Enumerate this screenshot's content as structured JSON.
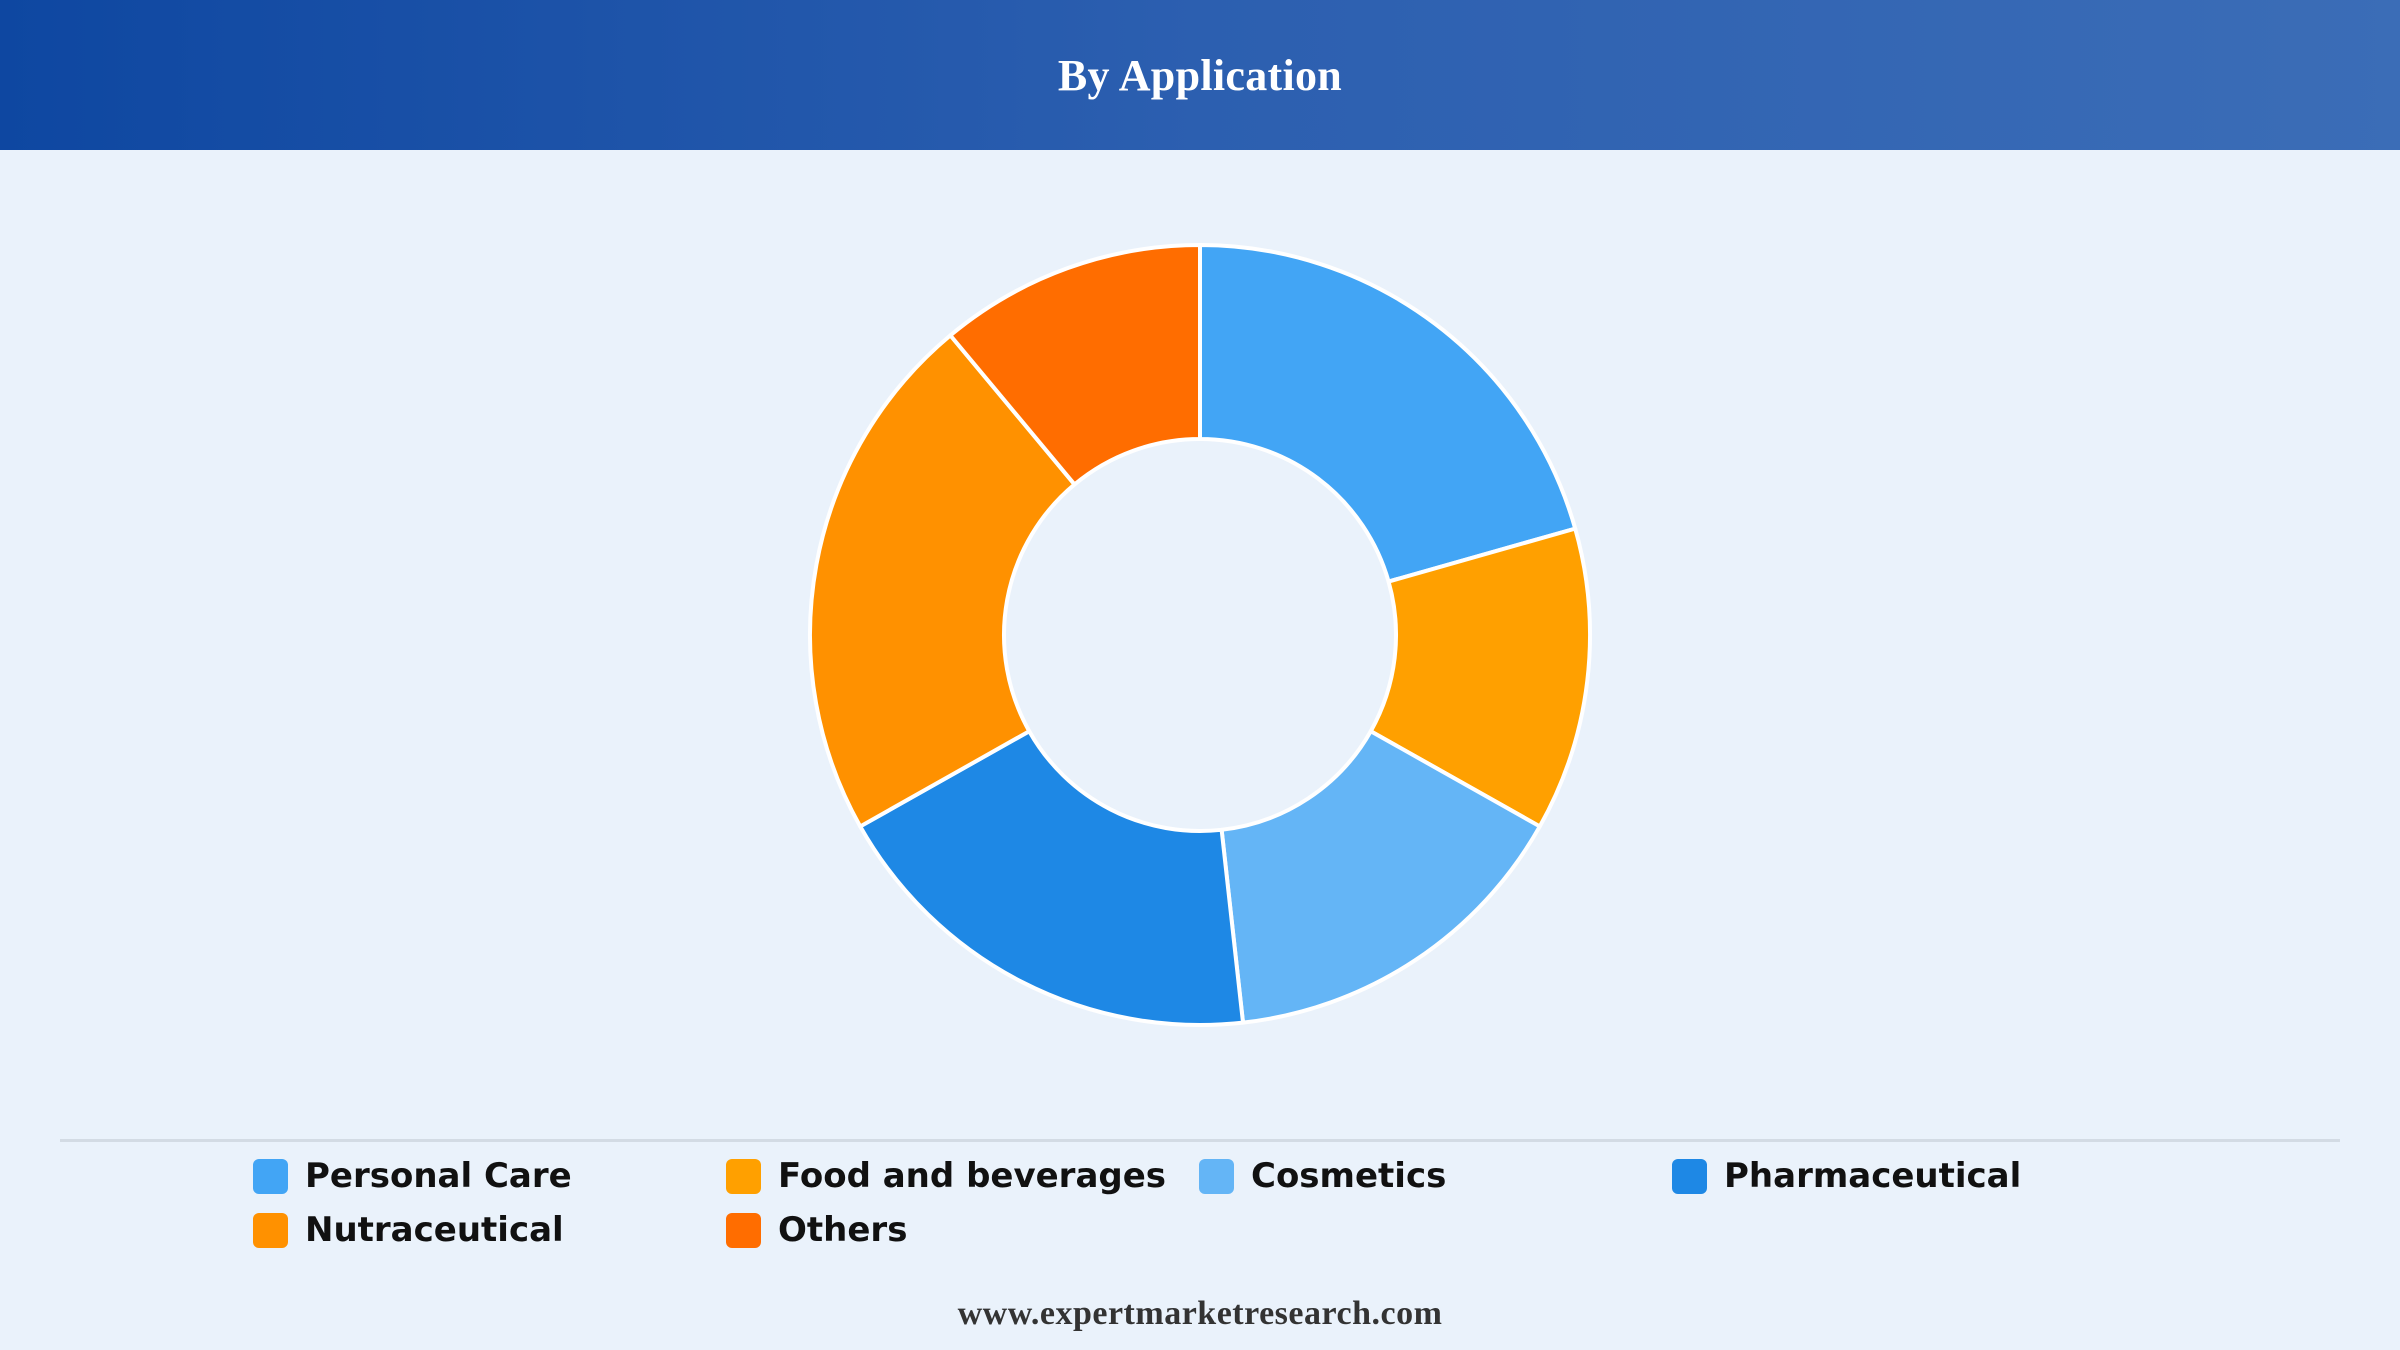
{
  "header": {
    "title": "By Application"
  },
  "chart_data": {
    "type": "pie",
    "subtype": "donut",
    "title": "By Application",
    "categories": [
      "Personal Care",
      "Food and beverages",
      "Cosmetics",
      "Pharmaceutical",
      "Nutraceutical",
      "Others"
    ],
    "values": [
      20.5,
      12.5,
      15.0,
      18.5,
      22.0,
      11.0
    ],
    "colors": [
      "#42a5f5",
      "#ffa000",
      "#64b5f6",
      "#1e88e5",
      "#ff9100",
      "#ff6d00"
    ],
    "legend_position": "bottom"
  },
  "legend": {
    "items": [
      {
        "label": "Personal Care",
        "color": "#42a5f5"
      },
      {
        "label": "Food and beverages",
        "color": "#ffa000"
      },
      {
        "label": "Cosmetics",
        "color": "#64b5f6"
      },
      {
        "label": "Pharmaceutical",
        "color": "#1e88e5"
      },
      {
        "label": "Nutraceutical",
        "color": "#ff9100"
      },
      {
        "label": "Others",
        "color": "#ff6d00"
      }
    ]
  },
  "footer": {
    "source": "www.expertmarketresearch.com"
  }
}
